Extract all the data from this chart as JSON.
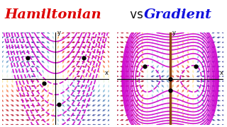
{
  "title_left": "Hamiltonian",
  "title_vs": " vs ",
  "title_right": "Gradient",
  "title_left_color": "#dd0000",
  "title_vs_color": "#111111",
  "title_right_color": "#1111dd",
  "title_fontsize": 14,
  "bg_color": "#e8a040",
  "curve_color": "#cc00cc",
  "axis_color": "#000000",
  "gradient_axis_color": "#8B4513",
  "dot_color": "#000000",
  "ham_dots": [
    [
      -1.2,
      0.9
    ],
    [
      1.2,
      0.9
    ],
    [
      -0.5,
      -0.2
    ],
    [
      0.15,
      -1.1
    ]
  ],
  "grad_dots": [
    [
      -1.1,
      0.55
    ],
    [
      1.1,
      0.55
    ],
    [
      0.0,
      -0.5
    ],
    [
      0.0,
      0.0
    ]
  ],
  "xlim": [
    -2.3,
    2.3
  ],
  "ylim": [
    -2.0,
    2.0
  ]
}
